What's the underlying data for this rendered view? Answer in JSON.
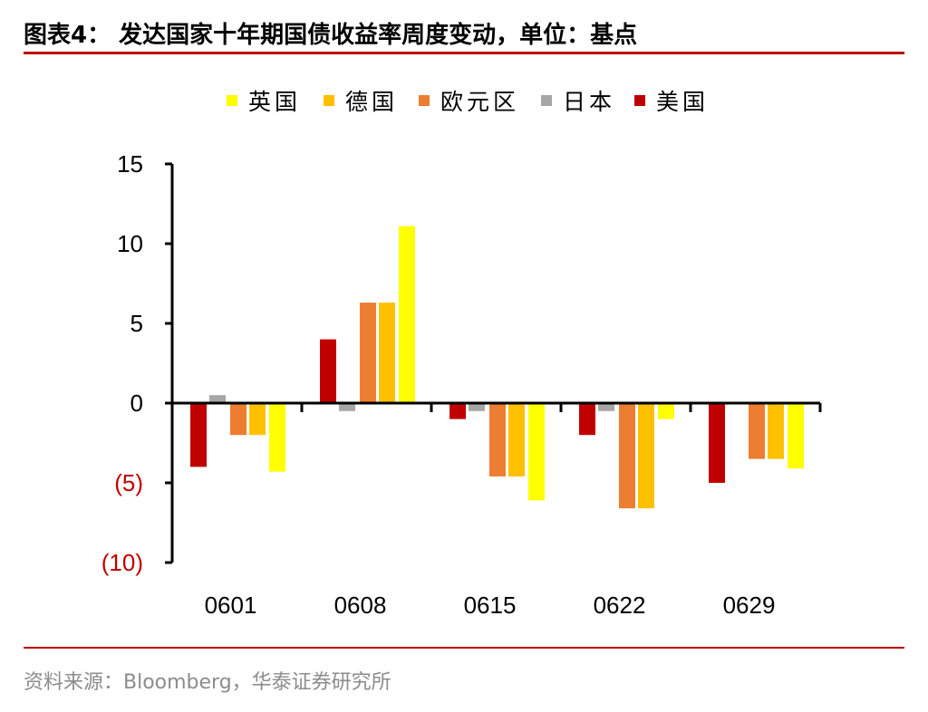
{
  "title": "图表4： 发达国家十年期国债收益率周度变动，单位：基点",
  "source": "资料来源：Bloomberg，华泰证券研究所",
  "chart_data": {
    "type": "bar",
    "categories": [
      "0601",
      "0608",
      "0615",
      "0622",
      "0629"
    ],
    "ylim": [
      -10,
      15
    ],
    "yticks": [
      15,
      10,
      5,
      0,
      -5,
      -10
    ],
    "ytick_labels": [
      "15",
      "10",
      "5",
      "0",
      "(5)",
      "(10)"
    ],
    "legend_position": "top",
    "legend": [
      "英国",
      "德国",
      "欧元区",
      "日本",
      "美国"
    ],
    "series": [
      {
        "name": "美国",
        "color": "#c00000",
        "values": [
          -4.0,
          4.0,
          -1.0,
          -2.0,
          -5.0
        ]
      },
      {
        "name": "日本",
        "color": "#a6a6a6",
        "values": [
          0.5,
          -0.5,
          -0.5,
          -0.5,
          0
        ]
      },
      {
        "name": "欧元区",
        "color": "#ed7d31",
        "values": [
          -2.0,
          6.3,
          -4.6,
          -6.6,
          -3.5
        ]
      },
      {
        "name": "德国",
        "color": "#ffc000",
        "values": [
          -2.0,
          6.3,
          -4.6,
          -6.6,
          -3.5
        ]
      },
      {
        "name": "英国",
        "color": "#ffff00",
        "values": [
          -4.3,
          11.1,
          -6.1,
          -1.0,
          -4.1
        ]
      }
    ],
    "negative_label_color": "#c00000"
  }
}
